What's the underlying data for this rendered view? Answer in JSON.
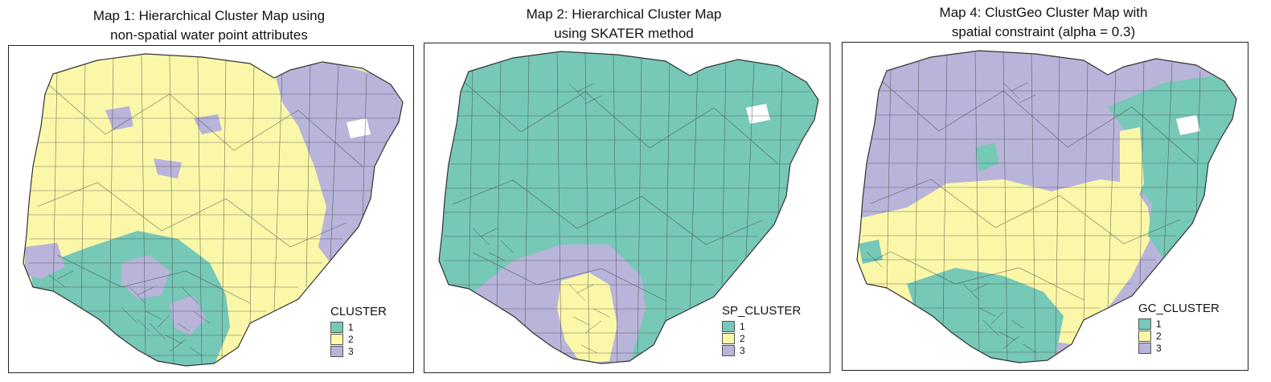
{
  "colors": {
    "c1": "#76C8B7",
    "c2": "#FAF8A8",
    "c3": "#B8B4DA",
    "border": "#333333"
  },
  "maps": [
    {
      "title_line1": "Map 1: Hierarchical Cluster Map using",
      "title_line2": "non-spatial water point attributes",
      "legend_title": "CLUSTER",
      "legend": [
        {
          "label": "1",
          "color": "#76C8B7"
        },
        {
          "label": "2",
          "color": "#FAF8A8"
        },
        {
          "label": "3",
          "color": "#B8B4DA"
        }
      ]
    },
    {
      "title_line1": "Map 2: Hierarchical Cluster Map",
      "title_line2": "using SKATER method",
      "legend_title": "SP_CLUSTER",
      "legend": [
        {
          "label": "1",
          "color": "#76C8B7"
        },
        {
          "label": "2",
          "color": "#FAF8A8"
        },
        {
          "label": "3",
          "color": "#B8B4DA"
        }
      ]
    },
    {
      "title_line1": "Map 4: ClustGeo Cluster Map with",
      "title_line2": "spatial constraint (alpha = 0.3)",
      "legend_title": "GC_CLUSTER",
      "legend": [
        {
          "label": "1",
          "color": "#76C8B7"
        },
        {
          "label": "2",
          "color": "#FAF8A8"
        },
        {
          "label": "3",
          "color": "#B8B4DA"
        }
      ]
    }
  ]
}
